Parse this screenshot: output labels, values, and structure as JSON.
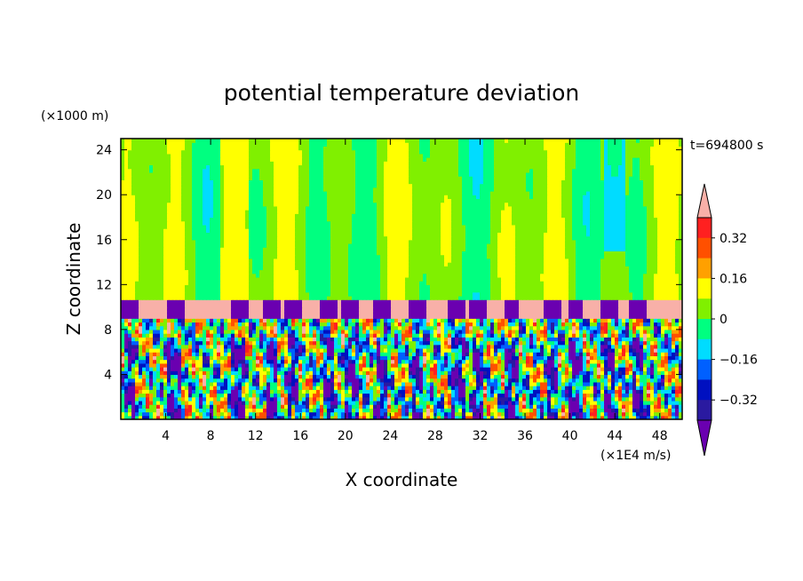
{
  "chart_data": {
    "type": "heatmap",
    "title": "potential temperature deviation",
    "time_label": "t=694800 s",
    "xlabel": "X coordinate",
    "ylabel": "Z coordinate",
    "x_unit": "(×1E4 m/s)",
    "y_unit": "(×1000 m)",
    "xlim": [
      0,
      50
    ],
    "ylim": [
      0,
      25
    ],
    "x_ticks": [
      "4",
      "8",
      "12",
      "16",
      "20",
      "24",
      "28",
      "32",
      "36",
      "40",
      "44",
      "48"
    ],
    "y_ticks": [
      "4",
      "8",
      "12",
      "16",
      "20",
      "24"
    ],
    "colorbar": {
      "labels": [
        "0.32",
        "0.16",
        "0",
        "−0.16",
        "−0.32"
      ],
      "levels": [
        -0.4,
        -0.32,
        -0.24,
        -0.16,
        -0.08,
        0,
        0.08,
        0.16,
        0.24,
        0.32,
        0.4
      ],
      "colors": [
        "#6a00b0",
        "#2a1aa0",
        "#0010c0",
        "#0060ff",
        "#00dcff",
        "#00ff80",
        "#80f000",
        "#ffff00",
        "#ffa000",
        "#ff5000",
        "#ff2020",
        "#f8b0a8"
      ]
    },
    "layers": {
      "upper_band_z": [
        10.8,
        25
      ],
      "tropopause_band_z": [
        9.0,
        10.8
      ],
      "lower_band_z": [
        0,
        9.0
      ]
    },
    "purple_columns_x": [
      0.8,
      4.8,
      10.5,
      13.5,
      15.3,
      18.5,
      20.5,
      23.3,
      26.5,
      30.0,
      31.8,
      34.8,
      38.5,
      40.5,
      43.5,
      46.0
    ]
  }
}
